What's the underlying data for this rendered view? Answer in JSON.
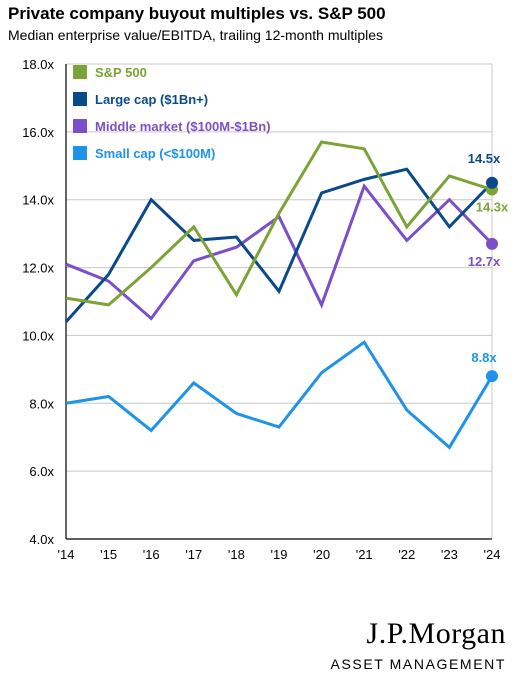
{
  "header": {
    "title": "Private company buyout multiples vs. S&P 500",
    "subtitle": "Median enterprise value/EBITDA, trailing 12-month multiples"
  },
  "logo": {
    "main": "J.P.Morgan",
    "sub": "ASSET MANAGEMENT"
  },
  "chart_data": {
    "type": "line",
    "title": "Private company buyout multiples vs. S&P 500",
    "subtitle": "Median enterprise value/EBITDA, trailing 12-month multiples",
    "x": [
      "'14",
      "'15",
      "'16",
      "'17",
      "'18",
      "'19",
      "'20",
      "'21",
      "'22",
      "'23",
      "'24"
    ],
    "yticks": [
      "4.0x",
      "6.0x",
      "8.0x",
      "10.0x",
      "12.0x",
      "14.0x",
      "16.0x",
      "18.0x"
    ],
    "ylim": [
      4,
      18
    ],
    "grid": "horizontal",
    "legend_position": "top-left",
    "series": [
      {
        "name": "S&P 500",
        "color": "#7ca336",
        "values": [
          11.1,
          10.9,
          12.0,
          13.2,
          11.2,
          13.6,
          15.7,
          15.5,
          13.2,
          14.7,
          14.3
        ],
        "end_label": "14.3x"
      },
      {
        "name": "Large cap ($1Bn+)",
        "color": "#0b4a8a",
        "values": [
          10.4,
          11.8,
          14.0,
          12.8,
          12.9,
          11.3,
          14.2,
          14.6,
          14.9,
          13.2,
          14.5
        ],
        "end_label": "14.5x"
      },
      {
        "name": "Middle market ($100M-$1Bn)",
        "color": "#7b4fc8",
        "values": [
          12.1,
          11.6,
          10.5,
          12.2,
          12.6,
          13.5,
          10.9,
          14.4,
          12.8,
          14.0,
          12.7
        ],
        "end_label": "12.7x"
      },
      {
        "name": "Small cap (<$100M)",
        "color": "#1e93e8",
        "values": [
          8.0,
          8.2,
          7.2,
          8.6,
          7.7,
          7.3,
          8.9,
          9.8,
          7.8,
          6.7,
          8.8
        ],
        "end_label": "8.8x"
      }
    ]
  }
}
